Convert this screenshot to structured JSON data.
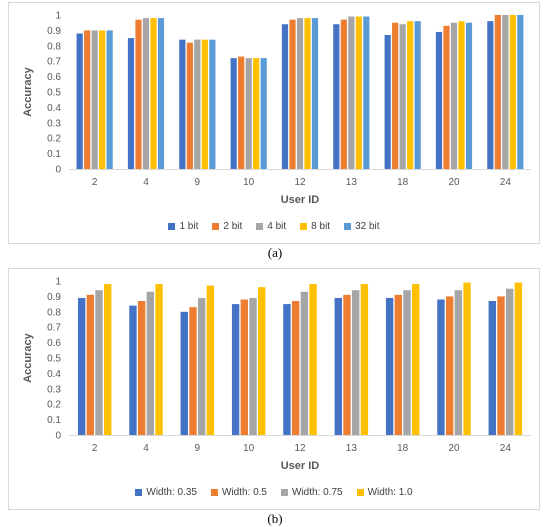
{
  "colors": [
    "#4472c4",
    "#ed7d31",
    "#a5a5a5",
    "#ffc000",
    "#5b9bd5"
  ],
  "captions": {
    "a": "(a)",
    "b": "(b)"
  },
  "chart_data": [
    {
      "type": "bar",
      "categories": [
        "2",
        "4",
        "9",
        "10",
        "12",
        "13",
        "18",
        "20",
        "24"
      ],
      "xlabel": "User ID",
      "ylabel": "Accuracy",
      "ylim": [
        0,
        1
      ],
      "yticks": [
        "0",
        "0.1",
        "0.2",
        "0.3",
        "0.4",
        "0.5",
        "0.6",
        "0.7",
        "0.8",
        "0.9",
        "1"
      ],
      "grid": false,
      "legend_position": "bottom",
      "series": [
        {
          "name": "1 bit",
          "values": [
            0.88,
            0.85,
            0.84,
            0.72,
            0.94,
            0.94,
            0.87,
            0.89,
            0.96
          ]
        },
        {
          "name": "2 bit",
          "values": [
            0.9,
            0.97,
            0.82,
            0.73,
            0.97,
            0.97,
            0.95,
            0.93,
            1.0
          ]
        },
        {
          "name": "4 bit",
          "values": [
            0.9,
            0.98,
            0.84,
            0.72,
            0.98,
            0.99,
            0.94,
            0.95,
            1.0
          ]
        },
        {
          "name": "8 bit",
          "values": [
            0.9,
            0.98,
            0.84,
            0.72,
            0.98,
            0.99,
            0.96,
            0.96,
            1.0
          ]
        },
        {
          "name": "32 bit",
          "values": [
            0.9,
            0.98,
            0.84,
            0.72,
            0.98,
            0.99,
            0.96,
            0.95,
            1.0
          ]
        }
      ]
    },
    {
      "type": "bar",
      "categories": [
        "2",
        "4",
        "9",
        "10",
        "12",
        "13",
        "18",
        "20",
        "24"
      ],
      "xlabel": "User ID",
      "ylabel": "Accuracy",
      "ylim": [
        0,
        1
      ],
      "yticks": [
        "0",
        "0.1",
        "0.2",
        "0.3",
        "0.4",
        "0.5",
        "0.6",
        "0.7",
        "0.8",
        "0.9",
        "1"
      ],
      "grid": false,
      "legend_position": "bottom",
      "series": [
        {
          "name": "Width: 0.35",
          "values": [
            0.89,
            0.84,
            0.8,
            0.85,
            0.85,
            0.89,
            0.89,
            0.88,
            0.87
          ]
        },
        {
          "name": "Width: 0.5",
          "values": [
            0.91,
            0.87,
            0.83,
            0.88,
            0.87,
            0.91,
            0.91,
            0.9,
            0.9
          ]
        },
        {
          "name": "Width: 0.75",
          "values": [
            0.94,
            0.93,
            0.89,
            0.89,
            0.93,
            0.94,
            0.94,
            0.94,
            0.95
          ]
        },
        {
          "name": "Width: 1.0",
          "values": [
            0.98,
            0.98,
            0.97,
            0.96,
            0.98,
            0.98,
            0.98,
            0.99,
            0.99
          ]
        }
      ]
    }
  ]
}
